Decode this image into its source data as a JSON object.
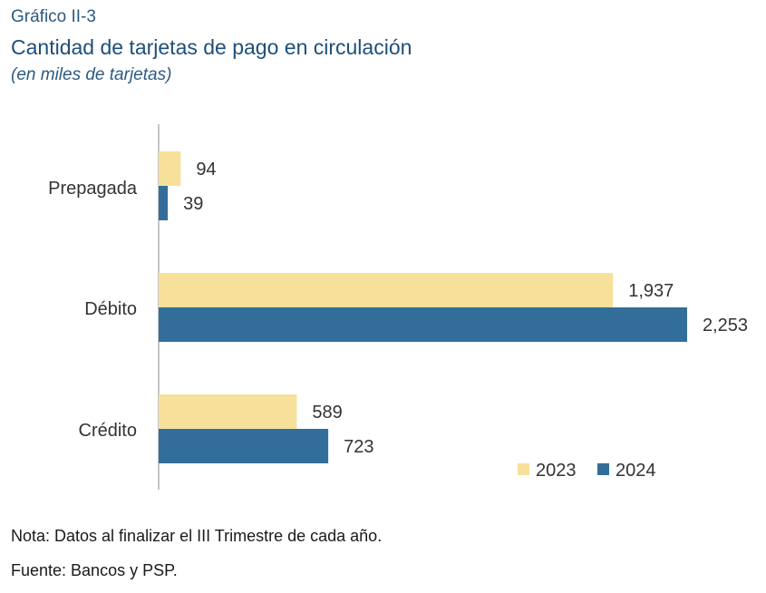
{
  "header": {
    "kicker": "Gráfico II-3",
    "title": "Cantidad de tarjetas de pago en circulación",
    "subtitle": "(en miles de tarjetas)"
  },
  "chart_data": {
    "type": "bar",
    "orientation": "horizontal",
    "categories": [
      "Prepagada",
      "Débito",
      "Crédito"
    ],
    "series": [
      {
        "name": "2023",
        "values": [
          94,
          1937,
          589
        ],
        "labels": [
          "94",
          "1,937",
          "589"
        ],
        "color": "#f7e09a"
      },
      {
        "name": "2024",
        "values": [
          39,
          2253,
          723
        ],
        "labels": [
          "39",
          "2,253",
          "723"
        ],
        "color": "#336e9a"
      }
    ],
    "xlim": [
      0,
      2253
    ],
    "legend": "bottom-right",
    "grid": false
  },
  "footer": {
    "note": "Nota: Datos al finalizar el III Trimestre de cada año.",
    "source": "Fuente: Bancos y PSP."
  }
}
